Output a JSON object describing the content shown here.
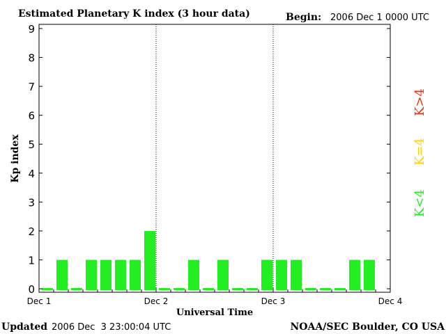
{
  "header": {
    "title": "Estimated Planetary K index (3 hour data)",
    "begin_label": "Begin:",
    "begin_value": "2006 Dec 1 0000 UTC"
  },
  "footer": {
    "updated_label": "Updated",
    "updated_value": "2006 Dec  3 23:00:04 UTC",
    "source": "NOAA/SEC Boulder, CO USA"
  },
  "legend": [
    {
      "label": "K<4",
      "color": "#22ee22"
    },
    {
      "label": "K=4",
      "color": "#ffd200"
    },
    {
      "label": "K>4",
      "color": "#ff2a00"
    }
  ],
  "chart_data": {
    "type": "bar",
    "title": "Estimated Planetary K index (3 hour data)",
    "xlabel": "Universal Time",
    "ylabel": "Kp index",
    "ylim": [
      0,
      9
    ],
    "yticks": [
      "0",
      "1",
      "2",
      "3",
      "4",
      "5",
      "6",
      "7",
      "8",
      "9"
    ],
    "xticks": [
      "Dec 1",
      "Dec 2",
      "Dec 3",
      "Dec 4"
    ],
    "bar_color": "#22ee22",
    "values": [
      0,
      1,
      0,
      1,
      1,
      1,
      1,
      2,
      0,
      0,
      1,
      0,
      1,
      0,
      0,
      1,
      1,
      1,
      0,
      0,
      0,
      1,
      1
    ]
  }
}
